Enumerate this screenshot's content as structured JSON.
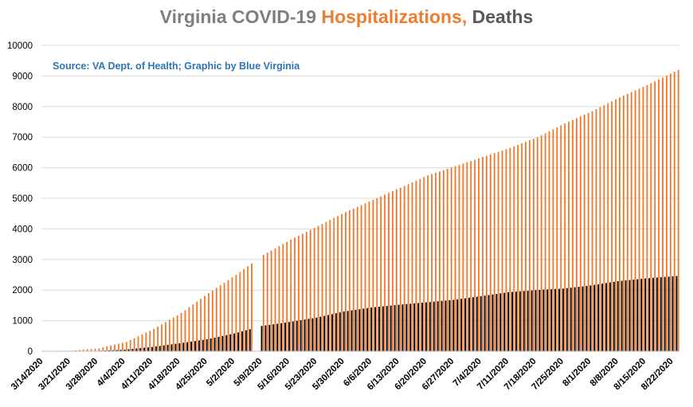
{
  "title": {
    "part1": "Virginia COVID-19 ",
    "part2": "Hospitalizations,",
    "part3": " Deaths",
    "color1": "#7f7f7f",
    "color2": "#ed7d31",
    "color3": "#595959"
  },
  "source": {
    "text": "Source: VA Dept. of Health; Graphic by Blue Virginia",
    "color": "#2e75b6"
  },
  "colors": {
    "hospitalizations": "#ed7d31",
    "deaths": "#000000",
    "grid": "#d9d9d9"
  },
  "chart_data": {
    "type": "bar",
    "title": "Virginia COVID-19 Hospitalizations, Deaths",
    "xlabel": "",
    "ylabel": "",
    "ylim": [
      0,
      10000
    ],
    "yticks": [
      0,
      1000,
      2000,
      3000,
      4000,
      5000,
      6000,
      7000,
      8000,
      9000,
      10000
    ],
    "grid": true,
    "legend": "none",
    "date_range": [
      "3/14/2020",
      "8/23/2020"
    ],
    "tick_labels": [
      "3/14/2020",
      "3/21/2020",
      "3/28/2020",
      "4/4/2020",
      "4/11/2020",
      "4/18/2020",
      "4/25/2020",
      "5/2/2020",
      "5/9/2020",
      "5/16/2020",
      "5/23/2020",
      "5/30/2020",
      "6/6/2020",
      "6/13/2020",
      "6/20/2020",
      "6/27/2020",
      "7/4/2020",
      "7/11/2020",
      "7/18/2020",
      "7/25/2020",
      "8/1/2020",
      "8/8/2020",
      "8/15/2020",
      "8/22/2020"
    ],
    "series": [
      {
        "key": "hospitalizations",
        "anchors": [
          [
            "3/14/2020",
            0
          ],
          [
            "3/21/2020",
            20
          ],
          [
            "3/28/2020",
            100
          ],
          [
            "4/4/2020",
            305
          ],
          [
            "4/11/2020",
            730
          ],
          [
            "4/18/2020",
            1250
          ],
          [
            "4/25/2020",
            1900
          ],
          [
            "5/2/2020",
            2500
          ],
          [
            "5/9/2020",
            3150
          ],
          [
            "5/16/2020",
            3650
          ],
          [
            "5/23/2020",
            4100
          ],
          [
            "5/30/2020",
            4550
          ],
          [
            "6/6/2020",
            4950
          ],
          [
            "6/13/2020",
            5350
          ],
          [
            "6/20/2020",
            5750
          ],
          [
            "6/27/2020",
            6050
          ],
          [
            "7/4/2020",
            6350
          ],
          [
            "7/11/2020",
            6650
          ],
          [
            "7/18/2020",
            7000
          ],
          [
            "7/25/2020",
            7450
          ],
          [
            "8/1/2020",
            7850
          ],
          [
            "8/8/2020",
            8300
          ],
          [
            "8/15/2020",
            8700
          ],
          [
            "8/23/2020",
            9200
          ]
        ],
        "gaps": [
          "5/7/2020",
          "5/8/2020"
        ]
      },
      {
        "key": "deaths",
        "anchors": [
          [
            "3/14/2020",
            0
          ],
          [
            "3/21/2020",
            2
          ],
          [
            "3/28/2020",
            13
          ],
          [
            "4/4/2020",
            52
          ],
          [
            "4/11/2020",
            140
          ],
          [
            "4/18/2020",
            260
          ],
          [
            "4/25/2020",
            390
          ],
          [
            "5/2/2020",
            580
          ],
          [
            "5/9/2020",
            827
          ],
          [
            "5/16/2020",
            955
          ],
          [
            "5/23/2020",
            1100
          ],
          [
            "5/30/2020",
            1300
          ],
          [
            "6/6/2020",
            1430
          ],
          [
            "6/13/2020",
            1520
          ],
          [
            "6/20/2020",
            1600
          ],
          [
            "6/27/2020",
            1680
          ],
          [
            "7/4/2020",
            1800
          ],
          [
            "7/11/2020",
            1930
          ],
          [
            "7/18/2020",
            2000
          ],
          [
            "7/25/2020",
            2050
          ],
          [
            "8/1/2020",
            2150
          ],
          [
            "8/8/2020",
            2290
          ],
          [
            "8/15/2020",
            2380
          ],
          [
            "8/23/2020",
            2460
          ]
        ],
        "gaps": [
          "5/7/2020",
          "5/8/2020"
        ]
      }
    ]
  }
}
